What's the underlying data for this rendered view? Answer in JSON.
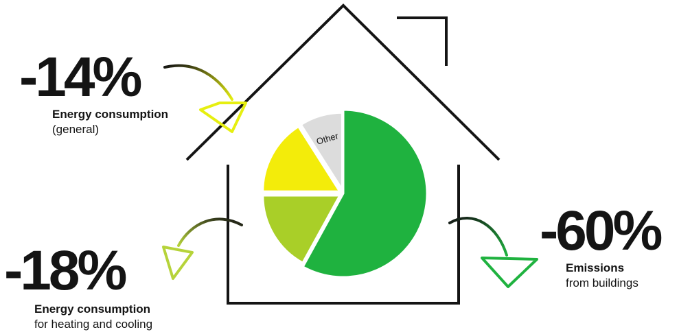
{
  "colors": {
    "outline": "#141414",
    "main_green": "#1fb23f",
    "yellow_green": "#a9cf28",
    "yellow": "#f3ec0a",
    "grey": "#dcdcdc",
    "arrow_a": "#e6ef10",
    "arrow_b": "#b6d33a",
    "arrow_c": "#1fb23f"
  },
  "stats": [
    {
      "value": "-14%",
      "line1": "Energy consumption",
      "line2": "(general)"
    },
    {
      "value": "-18%",
      "line1": "Energy consumption",
      "line2": "for heating and cooling"
    },
    {
      "value": "-60%",
      "line1": "Emissions",
      "line2": "from buildings"
    }
  ],
  "chart_data": {
    "type": "pie",
    "slices": [
      {
        "label": "",
        "value": 58,
        "color": "#1fb23f"
      },
      {
        "label": "",
        "value": 17,
        "color": "#a9cf28"
      },
      {
        "label": "",
        "value": 16,
        "color": "#f3ec0a"
      },
      {
        "label": "Other",
        "value": 9,
        "color": "#dcdcdc"
      }
    ]
  }
}
